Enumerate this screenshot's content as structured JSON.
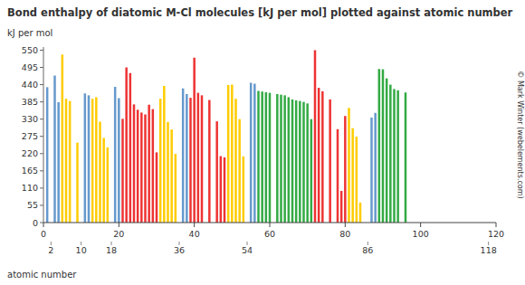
{
  "chart_data": {
    "type": "bar",
    "title": "Bond enthalpy of diatomic M-Cl molecules [kJ per mol] plotted against atomic number",
    "y_label": "kJ per mol",
    "x_label": "atomic number",
    "annotations": [
      "© Mark Winter (webelements.com)"
    ],
    "x": [
      1,
      3,
      4,
      5,
      6,
      7,
      9,
      11,
      12,
      13,
      14,
      15,
      16,
      17,
      19,
      20,
      21,
      22,
      23,
      24,
      25,
      26,
      27,
      28,
      29,
      30,
      31,
      32,
      33,
      34,
      35,
      37,
      38,
      39,
      40,
      41,
      42,
      44,
      46,
      47,
      48,
      49,
      50,
      51,
      52,
      53,
      55,
      56,
      57,
      58,
      59,
      60,
      62,
      63,
      64,
      65,
      66,
      67,
      68,
      69,
      70,
      71,
      72,
      73,
      74,
      76,
      78,
      79,
      80,
      81,
      82,
      83,
      84,
      87,
      88,
      89,
      90,
      91,
      92,
      93,
      94,
      96
    ],
    "values": [
      432,
      469,
      384,
      536,
      395,
      388,
      255,
      412,
      406,
      395,
      400,
      322,
      270,
      240,
      433,
      397,
      331,
      495,
      477,
      377,
      360,
      351,
      345,
      376,
      362,
      224,
      395,
      436,
      321,
      297,
      219,
      428,
      410,
      398,
      526,
      414,
      406,
      391,
      323,
      212,
      208,
      439,
      440,
      395,
      330,
      211,
      446,
      443,
      420,
      418,
      416,
      414,
      410,
      408,
      406,
      400,
      393,
      390,
      388,
      385,
      380,
      330,
      550,
      430,
      419,
      393,
      298,
      101,
      340,
      366,
      301,
      274,
      64,
      335,
      350,
      490,
      489,
      460,
      440,
      426,
      422,
      415
    ],
    "colors": [
      "#6699cc",
      "#6699cc",
      "#6699cc",
      "#ffcc00",
      "#ffcc00",
      "#ffcc00",
      "#ffcc00",
      "#6699cc",
      "#6699cc",
      "#ffcc00",
      "#ffcc00",
      "#ffcc00",
      "#ffcc00",
      "#ffcc00",
      "#6699cc",
      "#6699cc",
      "#ee3333",
      "#ee3333",
      "#ee3333",
      "#ee3333",
      "#ee3333",
      "#ee3333",
      "#ee3333",
      "#ee3333",
      "#ee3333",
      "#ee3333",
      "#ffcc00",
      "#ffcc00",
      "#ffcc00",
      "#ffcc00",
      "#ffcc00",
      "#6699cc",
      "#6699cc",
      "#ee3333",
      "#ee3333",
      "#ee3333",
      "#ee3333",
      "#ee3333",
      "#ee3333",
      "#ee3333",
      "#ee3333",
      "#ffcc00",
      "#ffcc00",
      "#ffcc00",
      "#ffcc00",
      "#ffcc00",
      "#6699cc",
      "#6699cc",
      "#33aa44",
      "#33aa44",
      "#33aa44",
      "#33aa44",
      "#33aa44",
      "#33aa44",
      "#33aa44",
      "#33aa44",
      "#33aa44",
      "#33aa44",
      "#33aa44",
      "#33aa44",
      "#33aa44",
      "#33aa44",
      "#ee3333",
      "#ee3333",
      "#ee3333",
      "#ee3333",
      "#ee3333",
      "#ee3333",
      "#ee3333",
      "#ffcc00",
      "#ffcc00",
      "#ffcc00",
      "#ffcc00",
      "#6699cc",
      "#6699cc",
      "#33aa44",
      "#33aa44",
      "#33aa44",
      "#33aa44",
      "#33aa44",
      "#33aa44",
      "#33aa44"
    ],
    "xlim": [
      0,
      120
    ],
    "ylim": [
      0,
      560
    ],
    "xticks": [
      0,
      20,
      40,
      60,
      80,
      100,
      120
    ],
    "x2ticks": [
      2,
      10,
      18,
      36,
      54,
      86,
      118
    ],
    "yticks": [
      0,
      55,
      110,
      165,
      220,
      275,
      330,
      385,
      440,
      495,
      550
    ]
  }
}
